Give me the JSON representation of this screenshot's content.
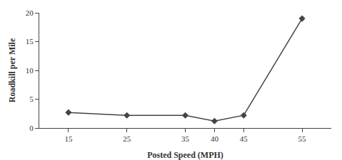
{
  "chart_data": {
    "type": "line",
    "x": [
      15,
      25,
      35,
      40,
      45,
      55
    ],
    "values": [
      2.7,
      2.2,
      2.2,
      1.2,
      2.2,
      19.0
    ],
    "xlabel": "Posted Speed (MPH)",
    "ylabel": "Roadkill per Mile",
    "xlim": [
      10,
      60
    ],
    "ylim": [
      0,
      20
    ],
    "xticks": [
      15,
      25,
      35,
      40,
      45,
      55
    ],
    "yticks": [
      0,
      5,
      10,
      15,
      20
    ],
    "color": "#444444",
    "marker": "diamond",
    "grid": false
  }
}
